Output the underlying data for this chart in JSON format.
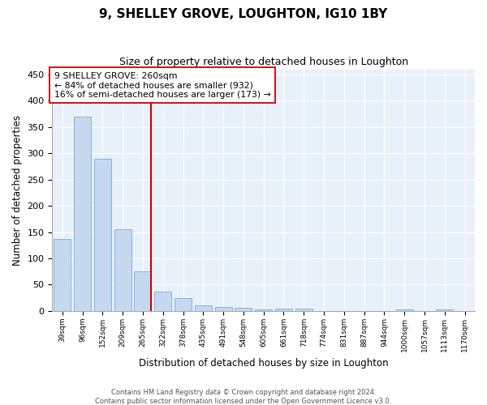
{
  "title": "9, SHELLEY GROVE, LOUGHTON, IG10 1BY",
  "subtitle": "Size of property relative to detached houses in Loughton",
  "xlabel": "Distribution of detached houses by size in Loughton",
  "ylabel": "Number of detached properties",
  "bar_labels": [
    "39sqm",
    "96sqm",
    "152sqm",
    "209sqm",
    "265sqm",
    "322sqm",
    "378sqm",
    "435sqm",
    "491sqm",
    "548sqm",
    "605sqm",
    "661sqm",
    "718sqm",
    "774sqm",
    "831sqm",
    "887sqm",
    "944sqm",
    "1000sqm",
    "1057sqm",
    "1113sqm",
    "1170sqm"
  ],
  "bar_values": [
    137,
    370,
    289,
    155,
    75,
    37,
    25,
    10,
    8,
    6,
    3,
    5,
    5,
    0,
    0,
    0,
    0,
    3,
    0,
    3,
    0
  ],
  "bar_color": "#c5d8f0",
  "bar_edge_color": "#7aadd4",
  "vline_color": "#cc0000",
  "vline_x_index": 4,
  "annotation_text": "9 SHELLEY GROVE: 260sqm\n← 84% of detached houses are smaller (932)\n16% of semi-detached houses are larger (173) →",
  "annotation_box_color": "#ffffff",
  "annotation_box_edge": "#cc0000",
  "ylim": [
    0,
    460
  ],
  "yticks": [
    0,
    50,
    100,
    150,
    200,
    250,
    300,
    350,
    400,
    450
  ],
  "footer_line1": "Contains HM Land Registry data © Crown copyright and database right 2024.",
  "footer_line2": "Contains public sector information licensed under the Open Government Licence v3.0.",
  "bg_color": "#ffffff",
  "plot_bg_color": "#e8f0fa"
}
